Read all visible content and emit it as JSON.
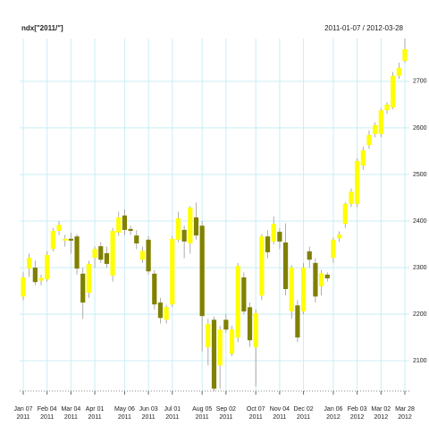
{
  "chart_data": {
    "type": "candlestick",
    "title": "ndx[\"2011/\"]",
    "subtitle": "2011-01-07 / 2012-03-28",
    "categories": [
      "Jan 07\n2011",
      null,
      null,
      null,
      "Feb 04\n2011",
      null,
      null,
      null,
      "Mar 04\n2011",
      null,
      null,
      null,
      "Apr 01\n2011",
      null,
      null,
      null,
      null,
      "May 06\n2011",
      null,
      null,
      null,
      "Jun 03\n2011",
      null,
      null,
      null,
      "Jul 01\n2011",
      null,
      null,
      null,
      null,
      "Aug 05\n2011",
      null,
      null,
      null,
      "Sep 02\n2011",
      null,
      null,
      null,
      null,
      "Oct 07\n2011",
      null,
      null,
      null,
      "Nov 04\n2011",
      null,
      null,
      null,
      "Dec 02\n2011",
      null,
      null,
      null,
      null,
      "Jan 06\n2012",
      null,
      null,
      null,
      "Feb 03\n2012",
      null,
      null,
      null,
      "Mar 02\n2012",
      null,
      null,
      null,
      "Mar 28\n2012"
    ],
    "open": [
      2238,
      2298,
      2300,
      2272,
      2275,
      2340,
      2379,
      2358,
      2362,
      2367,
      2287,
      2246,
      2321,
      2346,
      2331,
      2283,
      2375,
      2412,
      2383,
      2369,
      2317,
      2360,
      2287,
      2225,
      2188,
      2221,
      2360,
      2381,
      2352,
      2408,
      2390,
      2129,
      2188,
      2090,
      2188,
      2115,
      2150,
      2279,
      2215,
      2129,
      2240,
      2367,
      2356,
      2377,
      2354,
      2206,
      2219,
      2206,
      2335,
      2310,
      2260,
      2285,
      2321,
      2363,
      2394,
      2437,
      2437,
      2519,
      2563,
      2587,
      2587,
      2638,
      2644,
      2712,
      2744
    ],
    "high": [
      2290,
      2330,
      2315,
      2285,
      2335,
      2385,
      2400,
      2370,
      2375,
      2372,
      2300,
      2315,
      2345,
      2355,
      2345,
      2385,
      2420,
      2425,
      2390,
      2380,
      2345,
      2368,
      2295,
      2235,
      2220,
      2368,
      2420,
      2390,
      2432,
      2440,
      2400,
      2190,
      2195,
      2175,
      2200,
      2175,
      2310,
      2290,
      2225,
      2210,
      2372,
      2380,
      2410,
      2385,
      2395,
      2305,
      2230,
      2310,
      2345,
      2320,
      2295,
      2290,
      2365,
      2378,
      2440,
      2470,
      2535,
      2560,
      2595,
      2612,
      2642,
      2655,
      2720,
      2740,
      2792
    ],
    "low": [
      2230,
      2280,
      2262,
      2262,
      2270,
      2335,
      2370,
      2345,
      2330,
      2285,
      2190,
      2235,
      2300,
      2310,
      2300,
      2270,
      2368,
      2370,
      2370,
      2340,
      2310,
      2285,
      2210,
      2180,
      2180,
      2215,
      2355,
      2320,
      2330,
      2360,
      2120,
      2090,
      2035,
      2040,
      2160,
      2110,
      2140,
      2200,
      2130,
      2045,
      2230,
      2320,
      2350,
      2340,
      2240,
      2190,
      2140,
      2200,
      2300,
      2225,
      2240,
      2270,
      2310,
      2355,
      2385,
      2430,
      2430,
      2510,
      2555,
      2580,
      2580,
      2630,
      2640,
      2705,
      2740
    ],
    "close": [
      2279,
      2321,
      2269,
      2278,
      2327,
      2379,
      2392,
      2362,
      2358,
      2298,
      2225,
      2308,
      2340,
      2317,
      2308,
      2379,
      2408,
      2381,
      2379,
      2352,
      2336,
      2292,
      2221,
      2192,
      2215,
      2362,
      2406,
      2356,
      2429,
      2369,
      2196,
      2179,
      2040,
      2167,
      2167,
      2167,
      2304,
      2206,
      2144,
      2202,
      2367,
      2333,
      2394,
      2356,
      2254,
      2300,
      2150,
      2300,
      2317,
      2238,
      2288,
      2277,
      2360,
      2371,
      2437,
      2463,
      2529,
      2552,
      2585,
      2606,
      2638,
      2650,
      2712,
      2729,
      2769
    ],
    "up_color": "#ffff00",
    "down_color": "#808000",
    "grid_color": "#c9eef4",
    "ylim": [
      2035,
      2792
    ],
    "yticks": [
      2100,
      2200,
      2300,
      2400,
      2500,
      2600,
      2700
    ],
    "grid": true
  }
}
